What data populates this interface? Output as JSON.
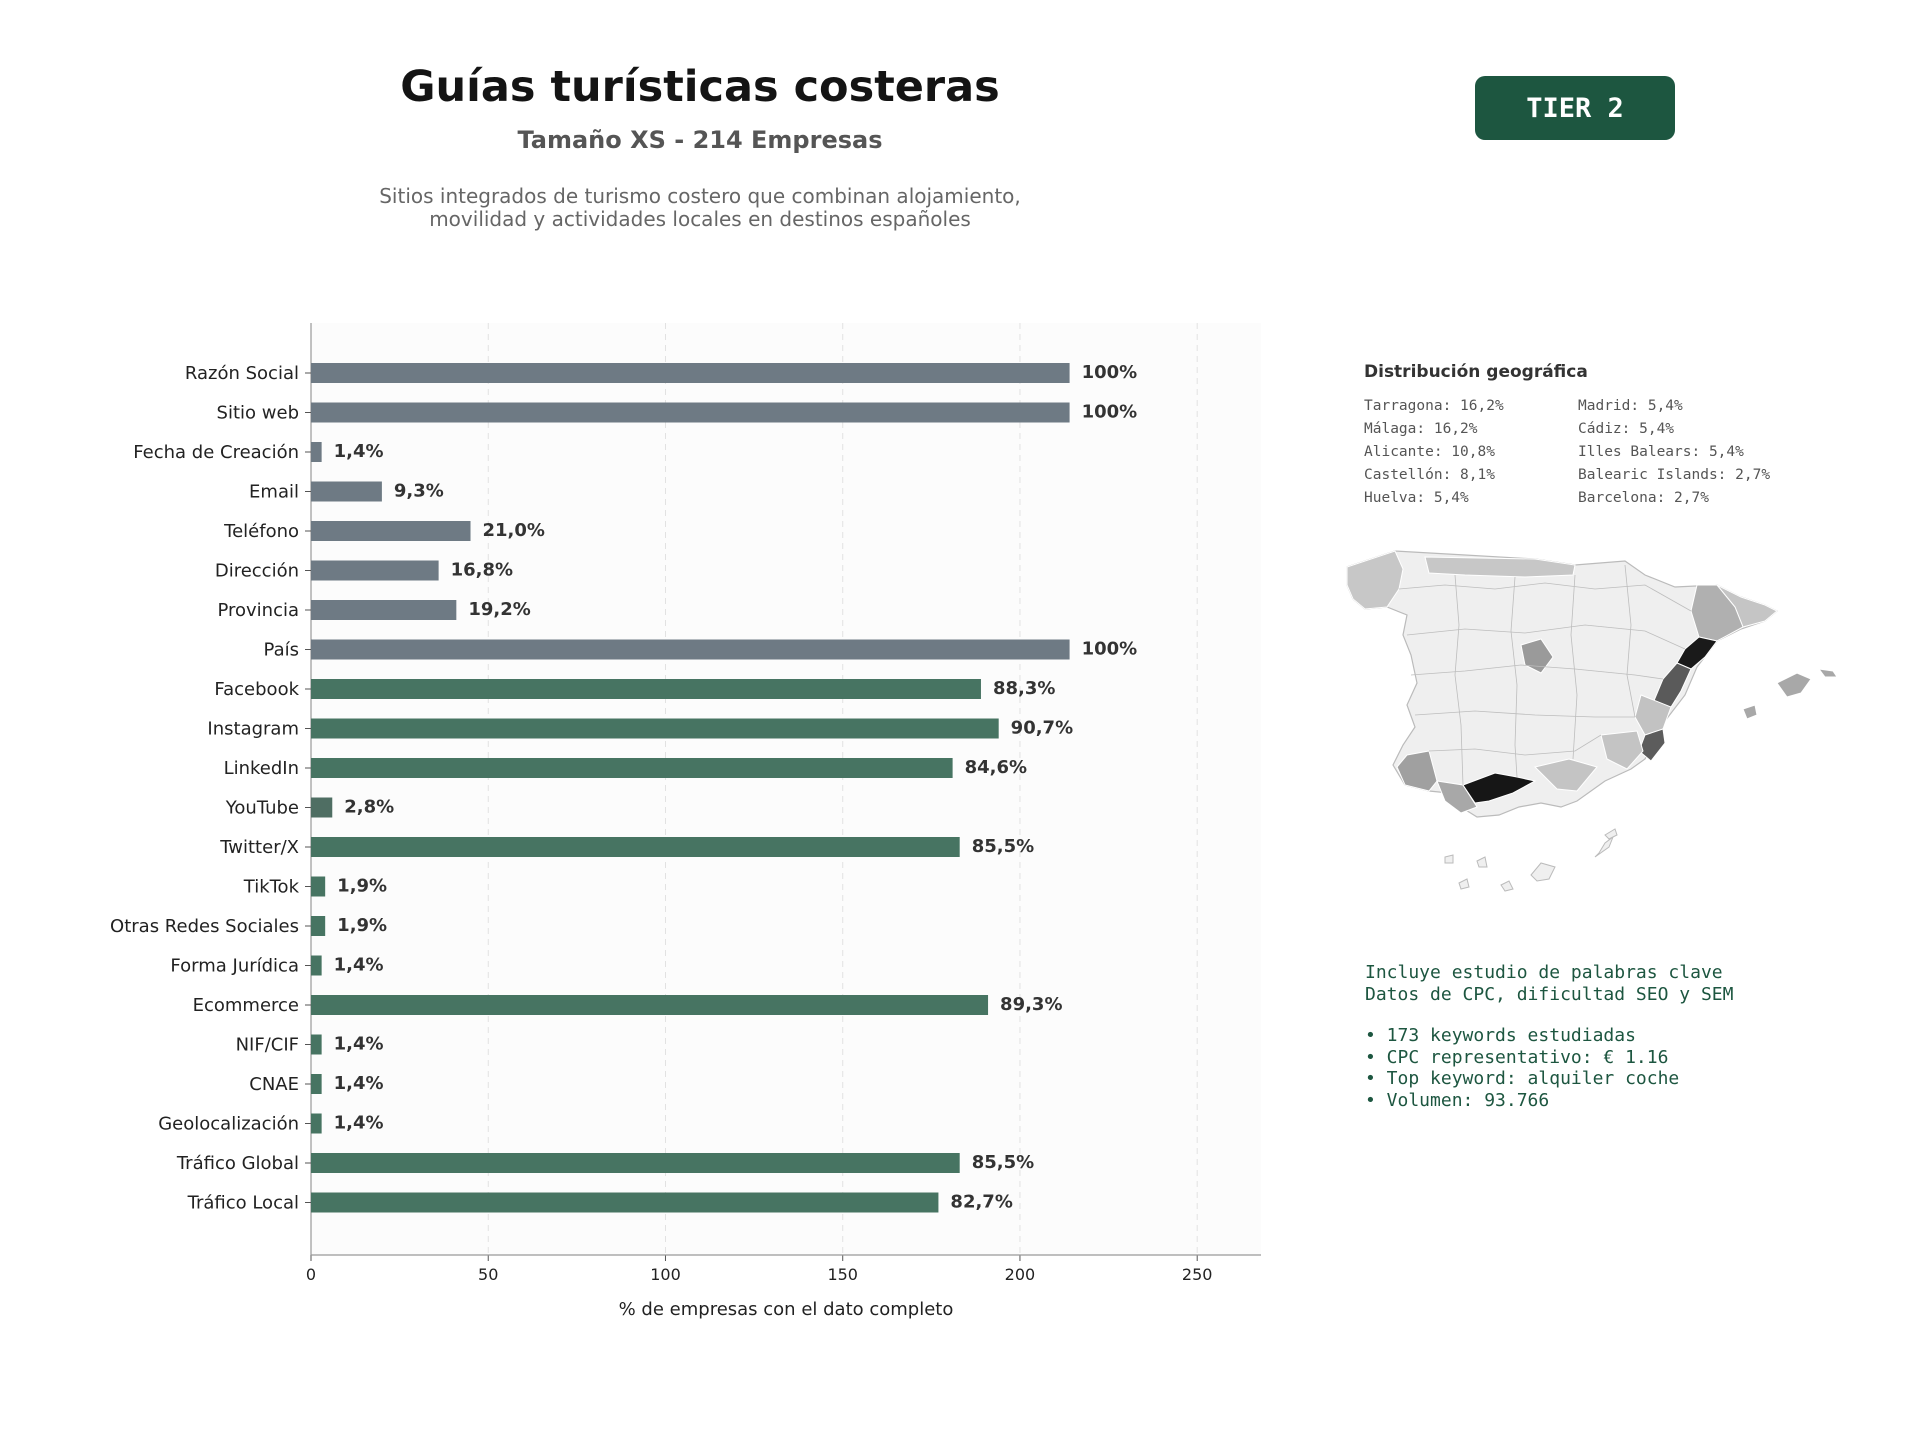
{
  "header": {
    "title": "Guías turísticas costeras",
    "subtitle": "Tamaño XS - 214 Empresas",
    "description_line1": "Sitios integrados de turismo costero que combinan alojamiento,",
    "description_line2": "movilidad y actividades locales en destinos españoles",
    "tier": "TIER 2"
  },
  "colors": {
    "contact_bar": "#6e7a84",
    "social_bar": "#477462",
    "youtube_bar": "#4f6e63",
    "accent": "#1d5640",
    "text_dark": "#333333"
  },
  "chart_data": {
    "type": "bar",
    "orientation": "horizontal",
    "xlabel": "% de empresas con el dato completo",
    "xlim": [
      0,
      268
    ],
    "xticks": [
      0,
      50,
      100,
      150,
      200,
      250
    ],
    "grid": "vertical dashed",
    "categories": [
      "Razón Social",
      "Sitio web",
      "Fecha de Creación",
      "Email",
      "Teléfono",
      "Dirección",
      "Provincia",
      "País",
      "Facebook",
      "Instagram",
      "LinkedIn",
      "YouTube",
      "Twitter/X",
      "TikTok",
      "Otras Redes Sociales",
      "Forma Jurídica",
      "Ecommerce",
      "NIF/CIF",
      "CNAE",
      "Geolocalización",
      "Tráfico Global",
      "Tráfico Local"
    ],
    "values": [
      214,
      214,
      3,
      20,
      45,
      36,
      41,
      214,
      189,
      194,
      181,
      6,
      183,
      4,
      4,
      3,
      191,
      3,
      3,
      3,
      183,
      177
    ],
    "labels": [
      "100%",
      "100%",
      "1,4%",
      "9,3%",
      "21,0%",
      "16,8%",
      "19,2%",
      "100%",
      "88,3%",
      "90,7%",
      "84,6%",
      "2,8%",
      "85,5%",
      "1,9%",
      "1,9%",
      "1,4%",
      "89,3%",
      "1,4%",
      "1,4%",
      "1,4%",
      "85,5%",
      "82,7%"
    ],
    "groups": [
      "contact",
      "contact",
      "contact",
      "contact",
      "contact",
      "contact",
      "contact",
      "contact",
      "social",
      "social",
      "social",
      "youtube",
      "social",
      "social",
      "social",
      "social",
      "social",
      "social",
      "social",
      "social",
      "social",
      "social"
    ]
  },
  "geo": {
    "title": "Distribución geográfica",
    "left": [
      "Tarragona: 16,2%",
      "Málaga: 16,2%",
      "Alicante: 10,8%",
      "Castellón: 8,1%",
      "Huelva: 5,4%"
    ],
    "right": [
      "Madrid: 5,4%",
      "Cádiz: 5,4%",
      "Illes Balears: 5,4%",
      "Balearic Islands: 2,7%",
      "Barcelona: 2,7%"
    ]
  },
  "keywords": {
    "line1": "Incluye estudio de palabras clave",
    "line2": "Datos de CPC, dificultad SEO y SEM",
    "bullets": [
      "• 173 keywords estudiadas",
      "• CPC representativo: € 1.16",
      "• Top keyword: alquiler coche",
      "• Volumen: 93.766"
    ]
  }
}
